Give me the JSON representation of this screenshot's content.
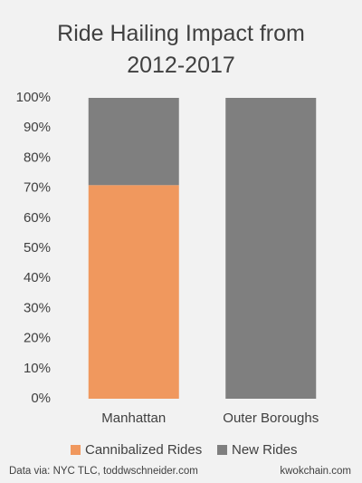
{
  "chart_data": {
    "type": "stacked_bar",
    "title": "Ride Hailing Impact from 2012-2017",
    "categories": [
      "Manhattan",
      "Outer Boroughs"
    ],
    "series": [
      {
        "name": "Cannibalized Rides",
        "color": "#f0985e",
        "values": [
          71,
          0
        ]
      },
      {
        "name": "New Rides",
        "color": "#7f7f7f",
        "values": [
          29,
          100
        ]
      }
    ],
    "ylim": [
      0,
      100
    ],
    "yticks": [
      {
        "value": 0,
        "label": "0%"
      },
      {
        "value": 10,
        "label": "10%"
      },
      {
        "value": 20,
        "label": "20%"
      },
      {
        "value": 30,
        "label": "30%"
      },
      {
        "value": 40,
        "label": "40%"
      },
      {
        "value": 50,
        "label": "50%"
      },
      {
        "value": 60,
        "label": "60%"
      },
      {
        "value": 70,
        "label": "70%"
      },
      {
        "value": 80,
        "label": "80%"
      },
      {
        "value": 90,
        "label": "90%"
      },
      {
        "value": 100,
        "label": "100%"
      }
    ],
    "grid": false,
    "legend": "bottom",
    "source": "Data via: NYC TLC, toddwschneider.com",
    "credit": "kwokchain.com"
  }
}
